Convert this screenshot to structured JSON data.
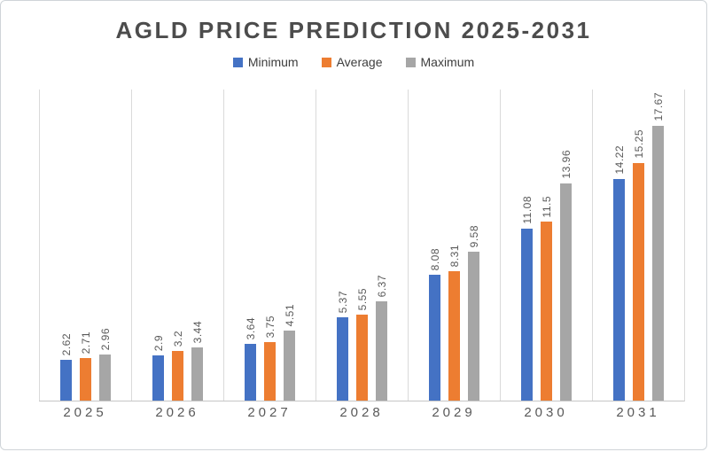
{
  "title": "AGLD PRICE PREDICTION 2025-2031",
  "chart_data": {
    "type": "bar",
    "title": "AGLD PRICE PREDICTION 2025-2031",
    "categories": [
      "2025",
      "2026",
      "2027",
      "2028",
      "2029",
      "2030",
      "2031"
    ],
    "series": [
      {
        "name": "Minimum",
        "color": "#4472C4",
        "values": [
          2.62,
          2.9,
          3.64,
          5.37,
          8.08,
          11.08,
          14.22
        ]
      },
      {
        "name": "Average",
        "color": "#ED7D31",
        "values": [
          2.71,
          3.2,
          3.75,
          5.55,
          8.31,
          11.5,
          15.25
        ]
      },
      {
        "name": "Maximum",
        "color": "#A6A6A6",
        "values": [
          2.96,
          3.44,
          4.51,
          6.37,
          9.58,
          13.96,
          17.67
        ]
      }
    ],
    "xlabel": "",
    "ylabel": "",
    "ylim": [
      0,
      20
    ],
    "grid": "vertical-category-separators",
    "legend_position": "top",
    "value_labels": "rotated-vertical-above-bars"
  },
  "style": {
    "gridline_color": "#dadada",
    "axis_line_color": "#c6c6c6",
    "label_color": "#595959",
    "title_color": "#4c4c4c",
    "frame_border_color": "#cfd4d8",
    "background": "#ffffff"
  }
}
